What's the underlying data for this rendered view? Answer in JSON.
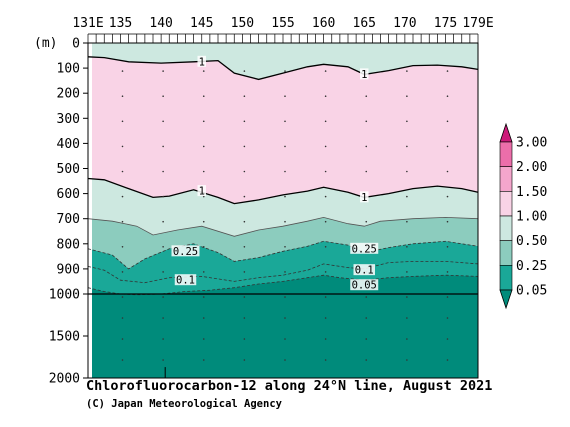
{
  "chart_data": {
    "type": "contour-section",
    "title": "Chlorofluorocarbon-12 along 24°N line, August 2021",
    "credit": "(C) Japan Meteorological Agency",
    "y_unit_label": "(m)",
    "x_ticks": [
      {
        "value": 131,
        "label": "131E"
      },
      {
        "value": 135,
        "label": "135"
      },
      {
        "value": 140,
        "label": "140"
      },
      {
        "value": 145,
        "label": "145"
      },
      {
        "value": 150,
        "label": "150"
      },
      {
        "value": 155,
        "label": "155"
      },
      {
        "value": 160,
        "label": "160"
      },
      {
        "value": 165,
        "label": "165"
      },
      {
        "value": 170,
        "label": "170"
      },
      {
        "value": 175,
        "label": "175"
      },
      {
        "value": 179,
        "label": "179E"
      }
    ],
    "y_ticks": [
      0,
      100,
      200,
      300,
      400,
      500,
      600,
      700,
      800,
      900,
      1000,
      1500,
      2000
    ],
    "xlim": [
      131,
      179
    ],
    "ylim": [
      0,
      2000
    ],
    "y_break": 1000,
    "colorbar": {
      "levels": [
        "0.05",
        "0.25",
        "0.50",
        "1.00",
        "1.50",
        "2.00",
        "3.00"
      ],
      "colors": [
        "#008b7b",
        "#1aa898",
        "#8cccbe",
        "#cde8e0",
        "#f9d3e6",
        "#f4a6cc",
        "#ec6eaa",
        "#cc1a7a"
      ]
    },
    "fill_colors": {
      "lt005": "#008b7b",
      "b005_025": "#1aa898",
      "b025_050": "#8cccbe",
      "b050_100": "#cde8e0",
      "b100_150": "#f9d3e6"
    },
    "contours": [
      {
        "level": "1",
        "label": "1",
        "lon": [
          131,
          133,
          136,
          140,
          144,
          147,
          149,
          152,
          155,
          158,
          160,
          163,
          165,
          168,
          171,
          174,
          177,
          179
        ],
        "depth": [
          55,
          58,
          75,
          80,
          75,
          70,
          120,
          145,
          120,
          95,
          85,
          95,
          125,
          110,
          90,
          88,
          95,
          105
        ]
      },
      {
        "level": "1",
        "label": "1",
        "lon": [
          131,
          133,
          136,
          139,
          141,
          144,
          147,
          149,
          152,
          155,
          158,
          160,
          163,
          165,
          168,
          171,
          174,
          177,
          179
        ],
        "depth": [
          540,
          545,
          580,
          615,
          610,
          585,
          615,
          640,
          625,
          605,
          590,
          575,
          595,
          615,
          600,
          580,
          570,
          580,
          595
        ]
      },
      {
        "level": "0.5",
        "label": "",
        "lon": [
          131,
          134,
          137,
          139,
          142,
          145,
          149,
          152,
          155,
          158,
          160,
          163,
          165,
          167,
          171,
          175,
          179
        ],
        "depth": [
          700,
          710,
          730,
          765,
          745,
          730,
          770,
          745,
          730,
          710,
          695,
          720,
          730,
          710,
          700,
          695,
          700
        ]
      },
      {
        "level": "0.25",
        "label": "0.25",
        "lon": [
          131,
          134,
          136,
          138,
          141,
          144,
          147,
          149,
          152,
          155,
          158,
          160,
          163,
          165,
          168,
          171,
          175,
          179
        ],
        "depth": [
          820,
          845,
          900,
          860,
          820,
          800,
          835,
          870,
          855,
          830,
          810,
          790,
          805,
          835,
          815,
          800,
          790,
          810
        ]
      },
      {
        "level": "0.1",
        "label": "0.1",
        "lon": [
          131,
          133,
          135,
          138,
          141,
          145,
          149,
          152,
          155,
          158,
          160,
          163,
          165,
          168,
          171,
          175,
          179
        ],
        "depth": [
          890,
          905,
          945,
          955,
          935,
          930,
          950,
          935,
          925,
          905,
          880,
          895,
          900,
          875,
          870,
          870,
          880
        ]
      },
      {
        "level": "0.05",
        "label": "0.05",
        "lon": [
          131,
          133,
          135,
          137,
          140,
          143,
          146,
          149,
          152,
          155,
          158,
          160,
          162,
          165,
          168,
          171,
          175,
          179
        ],
        "depth": [
          975,
          990,
          1000,
          1010,
          1000,
          990,
          985,
          975,
          960,
          950,
          935,
          925,
          935,
          945,
          935,
          930,
          925,
          930
        ]
      }
    ],
    "contour_labels": [
      {
        "text": "1",
        "lon": 145,
        "depth": 75
      },
      {
        "text": "1",
        "lon": 165,
        "depth": 125
      },
      {
        "text": "1",
        "lon": 145,
        "depth": 590
      },
      {
        "text": "1",
        "lon": 165,
        "depth": 615
      },
      {
        "text": "0.25",
        "lon": 143,
        "depth": 830
      },
      {
        "text": "0.25",
        "lon": 165,
        "depth": 820
      },
      {
        "text": "0.1",
        "lon": 143,
        "depth": 945
      },
      {
        "text": "0.1",
        "lon": 165,
        "depth": 905
      },
      {
        "text": "0.05",
        "lon": 165,
        "depth": 965
      }
    ],
    "seafloor_spike": {
      "lon": 140.5,
      "depth_top": 1870
    }
  }
}
